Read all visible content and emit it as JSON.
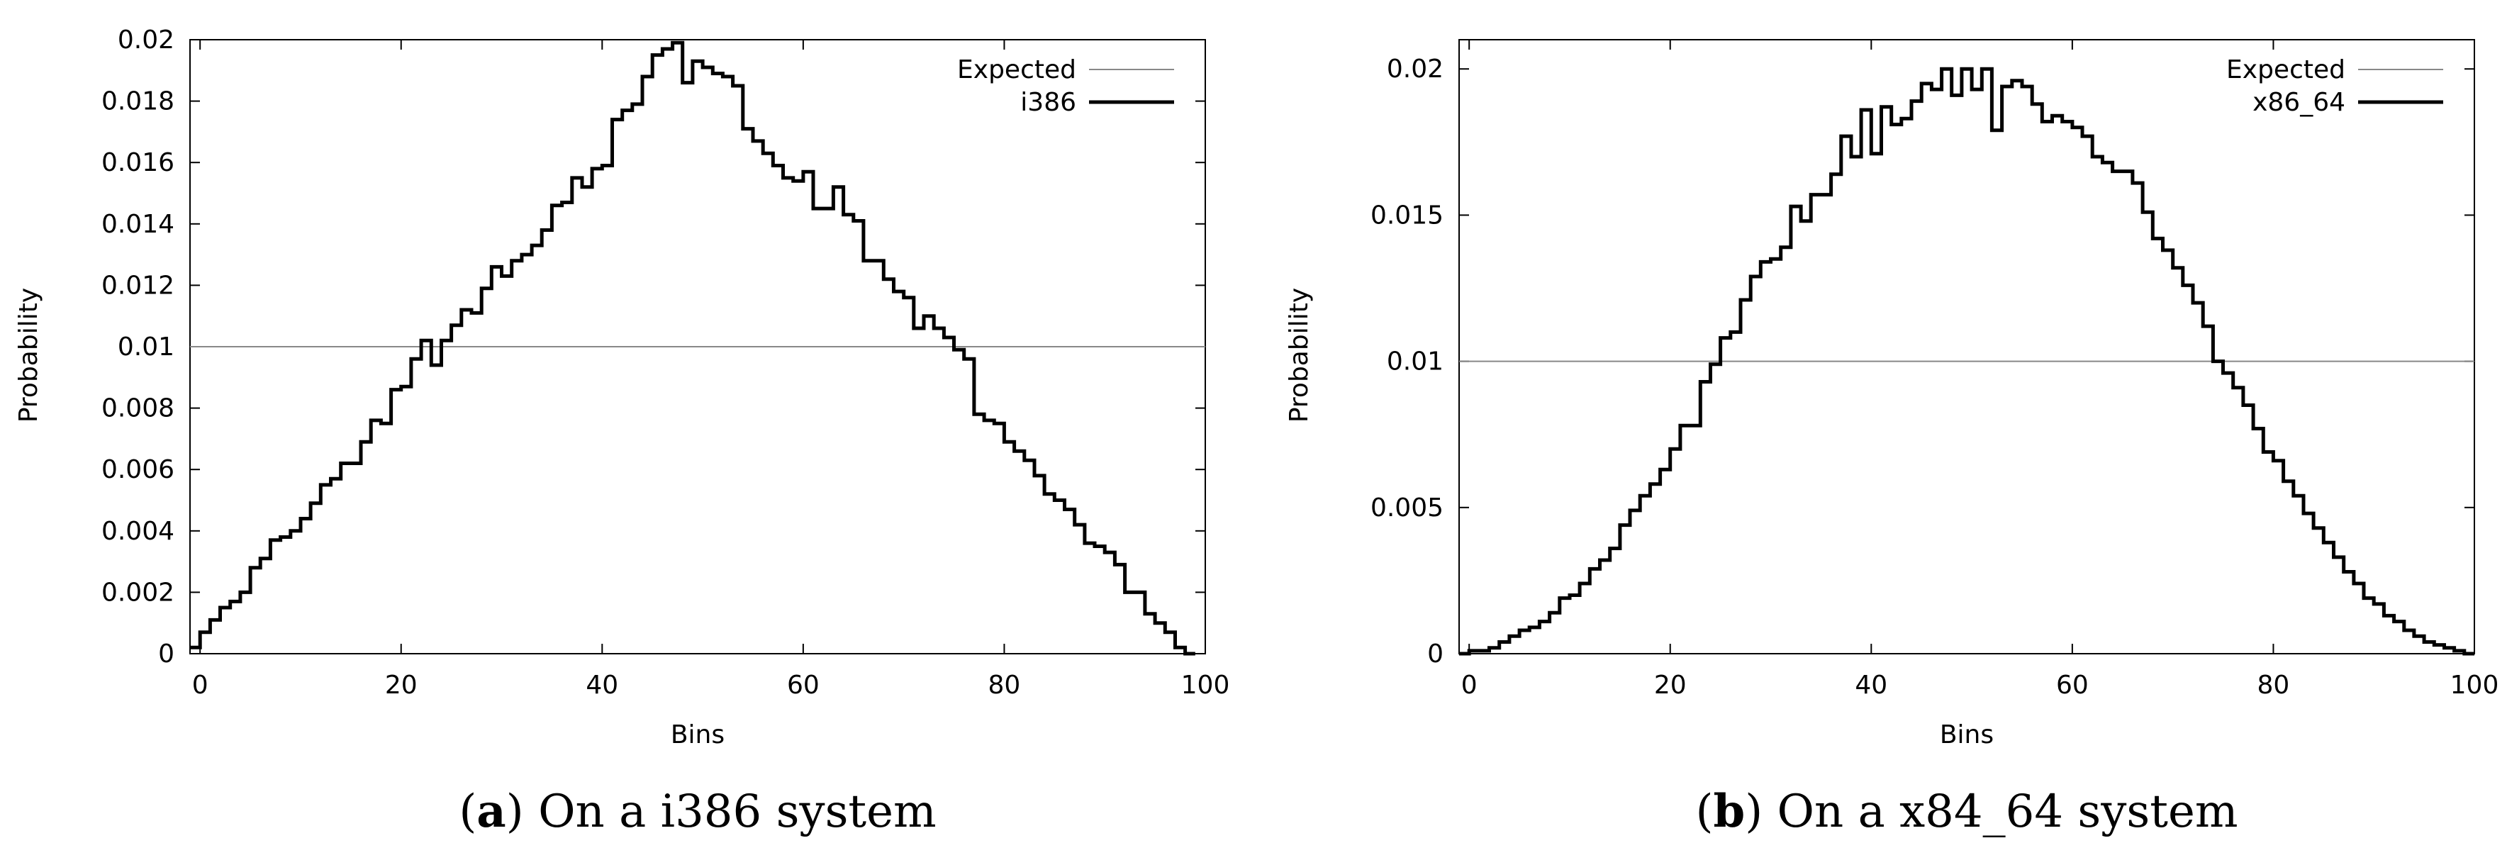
{
  "chart_data": [
    {
      "type": "line",
      "style": "step",
      "caption_letter": "a",
      "caption_text": "On a i386 system",
      "xlabel": "Bins",
      "ylabel": "Probability",
      "xlim": [
        -1,
        100
      ],
      "ylim": [
        0,
        0.02
      ],
      "xticks": [
        0,
        20,
        40,
        60,
        80,
        100
      ],
      "xtick_labels": [
        "0",
        "20",
        "40",
        "60",
        "80",
        "100"
      ],
      "yticks": [
        0,
        0.002,
        0.004,
        0.006,
        0.008,
        0.01,
        0.012,
        0.014,
        0.016,
        0.018,
        0.02
      ],
      "ytick_labels": [
        "0",
        "0.002",
        "0.004",
        "0.006",
        "0.008",
        "0.01",
        "0.012",
        "0.014",
        "0.016",
        "0.018",
        "0.02"
      ],
      "legend_position": "top-right",
      "series": [
        {
          "name": "Expected",
          "kind": "hline",
          "value": 0.01,
          "color": "#888888"
        },
        {
          "name": "i386",
          "kind": "step",
          "color": "#000000",
          "x_start": -1,
          "values": [
            0.0002,
            0.0007,
            0.0011,
            0.0015,
            0.0017,
            0.002,
            0.0028,
            0.0031,
            0.0037,
            0.0038,
            0.004,
            0.0044,
            0.0049,
            0.0055,
            0.0057,
            0.0062,
            0.0062,
            0.0069,
            0.0076,
            0.0075,
            0.0086,
            0.0087,
            0.0096,
            0.0102,
            0.0094,
            0.0102,
            0.0107,
            0.0112,
            0.0111,
            0.0119,
            0.0126,
            0.0123,
            0.0128,
            0.013,
            0.0133,
            0.0138,
            0.0146,
            0.0147,
            0.0155,
            0.0152,
            0.0158,
            0.0159,
            0.0174,
            0.0177,
            0.0179,
            0.0188,
            0.0195,
            0.0197,
            0.0199,
            0.0186,
            0.0193,
            0.0191,
            0.0189,
            0.0188,
            0.0185,
            0.0171,
            0.0167,
            0.0163,
            0.0159,
            0.0155,
            0.0154,
            0.0157,
            0.0145,
            0.0145,
            0.0152,
            0.0143,
            0.0141,
            0.0128,
            0.0128,
            0.0122,
            0.0118,
            0.0116,
            0.0106,
            0.011,
            0.0106,
            0.0103,
            0.0099,
            0.0096,
            0.0078,
            0.0076,
            0.0075,
            0.0069,
            0.0066,
            0.0063,
            0.0058,
            0.0052,
            0.005,
            0.0047,
            0.0042,
            0.0036,
            0.0035,
            0.0033,
            0.0029,
            0.002,
            0.002,
            0.0013,
            0.001,
            0.0007,
            0.0002,
            0.0
          ]
        }
      ]
    },
    {
      "type": "line",
      "style": "step",
      "caption_letter": "b",
      "caption_text": "On a x84_64 system",
      "xlabel": "Bins",
      "ylabel": "Probability",
      "xlim": [
        -1,
        100
      ],
      "ylim": [
        0,
        0.021
      ],
      "xticks": [
        0,
        20,
        40,
        60,
        80,
        100
      ],
      "xtick_labels": [
        "0",
        "20",
        "40",
        "60",
        "80",
        "100"
      ],
      "yticks": [
        0,
        0.005,
        0.01,
        0.015,
        0.02
      ],
      "ytick_labels": [
        "0",
        "0.005",
        "0.01",
        "0.015",
        "0.02"
      ],
      "legend_position": "top-right",
      "series": [
        {
          "name": "Expected",
          "kind": "hline",
          "value": 0.01,
          "color": "#888888"
        },
        {
          "name": "x86_64",
          "kind": "step",
          "color": "#000000",
          "x_start": -1,
          "values": [
            0.0,
            0.0001,
            0.0001,
            0.0002,
            0.0004,
            0.0006,
            0.0008,
            0.0009,
            0.0011,
            0.0014,
            0.0019,
            0.002,
            0.0024,
            0.0029,
            0.0032,
            0.0036,
            0.0044,
            0.0049,
            0.0054,
            0.0058,
            0.0063,
            0.007,
            0.0078,
            0.0078,
            0.0093,
            0.0099,
            0.0108,
            0.011,
            0.0121,
            0.0129,
            0.0134,
            0.0135,
            0.0139,
            0.0153,
            0.0148,
            0.0157,
            0.0157,
            0.0164,
            0.0177,
            0.017,
            0.0186,
            0.0171,
            0.0187,
            0.0181,
            0.0183,
            0.0189,
            0.0195,
            0.0193,
            0.02,
            0.0191,
            0.02,
            0.0193,
            0.02,
            0.0179,
            0.0194,
            0.0196,
            0.0194,
            0.0188,
            0.0182,
            0.0184,
            0.0182,
            0.018,
            0.0177,
            0.017,
            0.0168,
            0.0165,
            0.0165,
            0.0161,
            0.0151,
            0.0142,
            0.0138,
            0.0132,
            0.0126,
            0.012,
            0.0112,
            0.01,
            0.0096,
            0.0091,
            0.0085,
            0.0077,
            0.0069,
            0.0066,
            0.0059,
            0.0054,
            0.0048,
            0.0043,
            0.0038,
            0.0033,
            0.0028,
            0.0024,
            0.0019,
            0.0017,
            0.0013,
            0.0011,
            0.0008,
            0.0006,
            0.0004,
            0.0003,
            0.0002,
            0.0001,
            0.0
          ]
        }
      ]
    }
  ]
}
